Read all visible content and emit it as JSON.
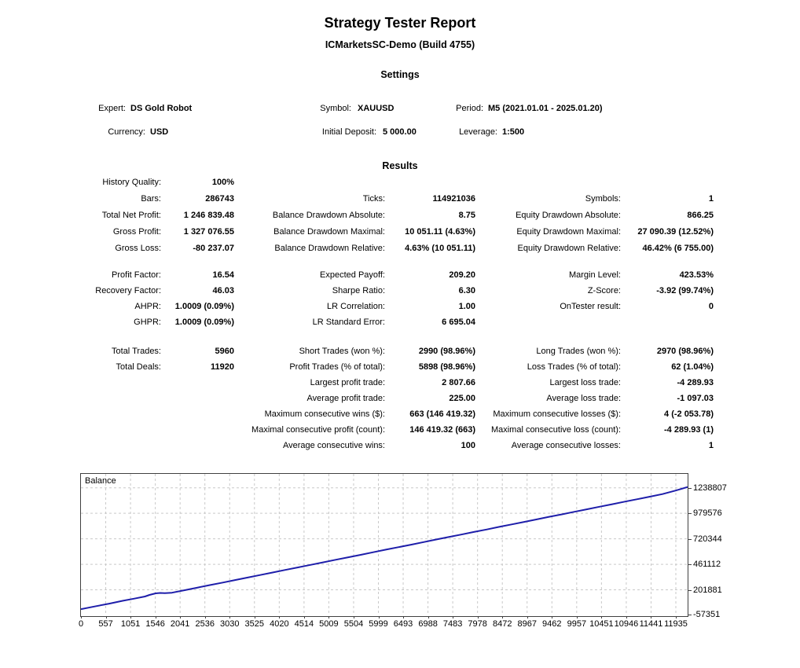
{
  "report": {
    "title": "Strategy Tester Report",
    "subtitle": "ICMarketsSC-Demo (Build 4755)"
  },
  "settings": {
    "heading": "Settings",
    "rows": [
      [
        {
          "label": "Expert:",
          "value": "DS Gold Robot"
        },
        {
          "label": "Symbol:",
          "value": "XAUUSD"
        },
        {
          "label": "Period:",
          "value": "M5 (2021.01.01 - 2025.01.20)"
        }
      ],
      [
        {
          "label": "Currency:",
          "value": "USD"
        },
        {
          "label": "Initial Deposit:",
          "value": "5 000.00"
        },
        {
          "label": "Leverage:",
          "value": "1:500"
        }
      ]
    ]
  },
  "results": {
    "heading": "Results",
    "blocks": [
      [
        [
          {
            "label": "History Quality:",
            "value": "100%"
          },
          null,
          null
        ],
        [
          {
            "label": "Bars:",
            "value": "286743"
          },
          {
            "label": "Ticks:",
            "value": "114921036"
          },
          {
            "label": "Symbols:",
            "value": "1"
          }
        ],
        [
          {
            "label": "Total Net Profit:",
            "value": "1 246 839.48"
          },
          {
            "label": "Balance Drawdown Absolute:",
            "value": "8.75"
          },
          {
            "label": "Equity Drawdown Absolute:",
            "value": "866.25"
          }
        ],
        [
          {
            "label": "Gross Profit:",
            "value": "1 327 076.55"
          },
          {
            "label": "Balance Drawdown Maximal:",
            "value": "10 051.11 (4.63%)"
          },
          {
            "label": "Equity Drawdown Maximal:",
            "value": "27 090.39 (12.52%)"
          }
        ],
        [
          {
            "label": "Gross Loss:",
            "value": "-80 237.07"
          },
          {
            "label": "Balance Drawdown Relative:",
            "value": "4.63% (10 051.11)"
          },
          {
            "label": "Equity Drawdown Relative:",
            "value": "46.42% (6 755.00)"
          }
        ]
      ],
      [
        [
          {
            "label": "Profit Factor:",
            "value": "16.54"
          },
          {
            "label": "Expected Payoff:",
            "value": "209.20"
          },
          {
            "label": "Margin Level:",
            "value": "423.53%"
          }
        ],
        [
          {
            "label": "Recovery Factor:",
            "value": "46.03"
          },
          {
            "label": "Sharpe Ratio:",
            "value": "6.30"
          },
          {
            "label": "Z-Score:",
            "value": "-3.92 (99.74%)"
          }
        ],
        [
          {
            "label": "AHPR:",
            "value": "1.0009 (0.09%)"
          },
          {
            "label": "LR Correlation:",
            "value": "1.00"
          },
          {
            "label": "OnTester result:",
            "value": "0"
          }
        ],
        [
          {
            "label": "GHPR:",
            "value": "1.0009 (0.09%)"
          },
          {
            "label": "LR Standard Error:",
            "value": "6 695.04"
          },
          null
        ]
      ],
      [
        [
          {
            "label": "Total Trades:",
            "value": "5960"
          },
          {
            "label": "Short Trades (won %):",
            "value": "2990 (98.96%)"
          },
          {
            "label": "Long Trades (won %):",
            "value": "2970 (98.96%)"
          }
        ],
        [
          {
            "label": "Total Deals:",
            "value": "11920"
          },
          {
            "label": "Profit Trades (% of total):",
            "value": "5898 (98.96%)"
          },
          {
            "label": "Loss Trades (% of total):",
            "value": "62 (1.04%)"
          }
        ],
        [
          null,
          {
            "label": "Largest profit trade:",
            "value": "2 807.66"
          },
          {
            "label": "Largest loss trade:",
            "value": "-4 289.93"
          }
        ],
        [
          null,
          {
            "label": "Average profit trade:",
            "value": "225.00"
          },
          {
            "label": "Average loss trade:",
            "value": "-1 097.03"
          }
        ],
        [
          null,
          {
            "label": "Maximum consecutive wins ($):",
            "value": "663 (146 419.32)"
          },
          {
            "label": "Maximum consecutive losses ($):",
            "value": "4 (-2 053.78)"
          }
        ],
        [
          null,
          {
            "label": "Maximal consecutive profit (count):",
            "value": "146 419.32 (663)"
          },
          {
            "label": "Maximal consecutive loss (count):",
            "value": "-4 289.93 (1)"
          }
        ],
        [
          null,
          {
            "label": "Average consecutive wins:",
            "value": "100"
          },
          {
            "label": "Average consecutive losses:",
            "value": "1"
          }
        ]
      ]
    ]
  },
  "chart_data": {
    "type": "line",
    "title": "Balance",
    "legend_position": "top-left",
    "grid": true,
    "line_color": "#1e1eaa",
    "grid_color": "#c9c9c9",
    "axis_color": "#404040",
    "xlim": [
      0,
      11935
    ],
    "ylim": [
      -57351,
      1380206
    ],
    "x_ticks": [
      0,
      557,
      1051,
      1546,
      2041,
      2536,
      3030,
      3525,
      4020,
      4514,
      5009,
      5504,
      5999,
      6493,
      6988,
      7483,
      7978,
      8472,
      8967,
      9462,
      9957,
      10451,
      10946,
      11441,
      11935
    ],
    "y_ticks": [
      1238807,
      979576,
      720344,
      461112,
      201881,
      -57351
    ],
    "series": [
      {
        "name": "Balance",
        "x": [
          0,
          260,
          557,
          820,
          1051,
          1260,
          1350,
          1470,
          1560,
          1650,
          1790,
          2041,
          2300,
          2536,
          2790,
          3030,
          3280,
          3525,
          3770,
          4020,
          4270,
          4514,
          4760,
          5009,
          5260,
          5504,
          5750,
          5999,
          6250,
          6493,
          6740,
          6988,
          7230,
          7483,
          7730,
          7978,
          8220,
          8472,
          8720,
          8967,
          9210,
          9462,
          9710,
          9957,
          10200,
          10451,
          10700,
          10946,
          11200,
          11441,
          11700,
          11935
        ],
        "y": [
          5000,
          32000,
          62000,
          90000,
          113000,
          134000,
          150000,
          166000,
          170000,
          168000,
          173000,
          198000,
          225000,
          250000,
          276000,
          301000,
          327000,
          352000,
          378000,
          404000,
          430000,
          455000,
          481000,
          507000,
          533000,
          558000,
          584000,
          610000,
          636000,
          661000,
          687000,
          713000,
          738000,
          764000,
          790000,
          815000,
          841000,
          867000,
          892000,
          918000,
          944000,
          969000,
          995000,
          1021000,
          1046000,
          1072000,
          1098000,
          1123000,
          1149000,
          1175000,
          1211000,
          1246839
        ]
      }
    ]
  }
}
